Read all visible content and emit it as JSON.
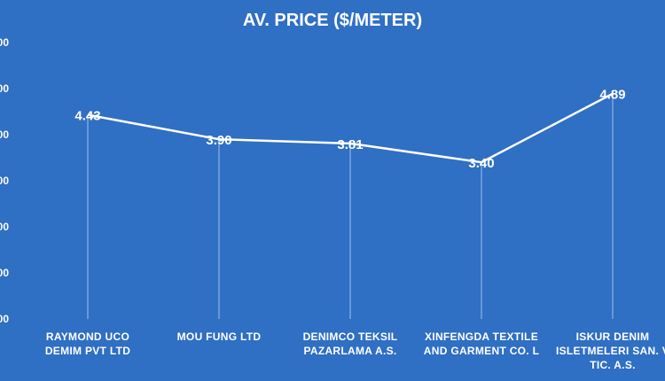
{
  "chart_data": {
    "type": "line",
    "title": "AV. PRICE ($/METER)",
    "categories": [
      [
        "RAYMOND UCO",
        "DEMIM PVT LTD"
      ],
      [
        "MOU FUNG LTD"
      ],
      [
        "DENIMCO TEKSIL",
        "PAZARLAMA A.S."
      ],
      [
        "XINFENGDA TEXTILE",
        "AND GARMENT CO. L"
      ],
      [
        "ISKUR DENIM",
        "ISLETMELERI SAN. V",
        "TIC. A.S."
      ]
    ],
    "values": [
      4.43,
      3.9,
      3.81,
      3.4,
      4.89
    ],
    "data_labels": [
      "4.43",
      "3.90",
      "3.81",
      "3.40",
      "4.89"
    ],
    "yticks": [
      "00",
      "00",
      "00",
      "00",
      "00",
      "00",
      "00"
    ],
    "ylim": [
      0,
      6
    ],
    "grid": false,
    "xlabel": "",
    "ylabel": "",
    "colors": {
      "background": "#2f6fc4",
      "line": "#ffffff",
      "text": "#ffffff",
      "drop_lines": "#9fc0ea"
    }
  }
}
